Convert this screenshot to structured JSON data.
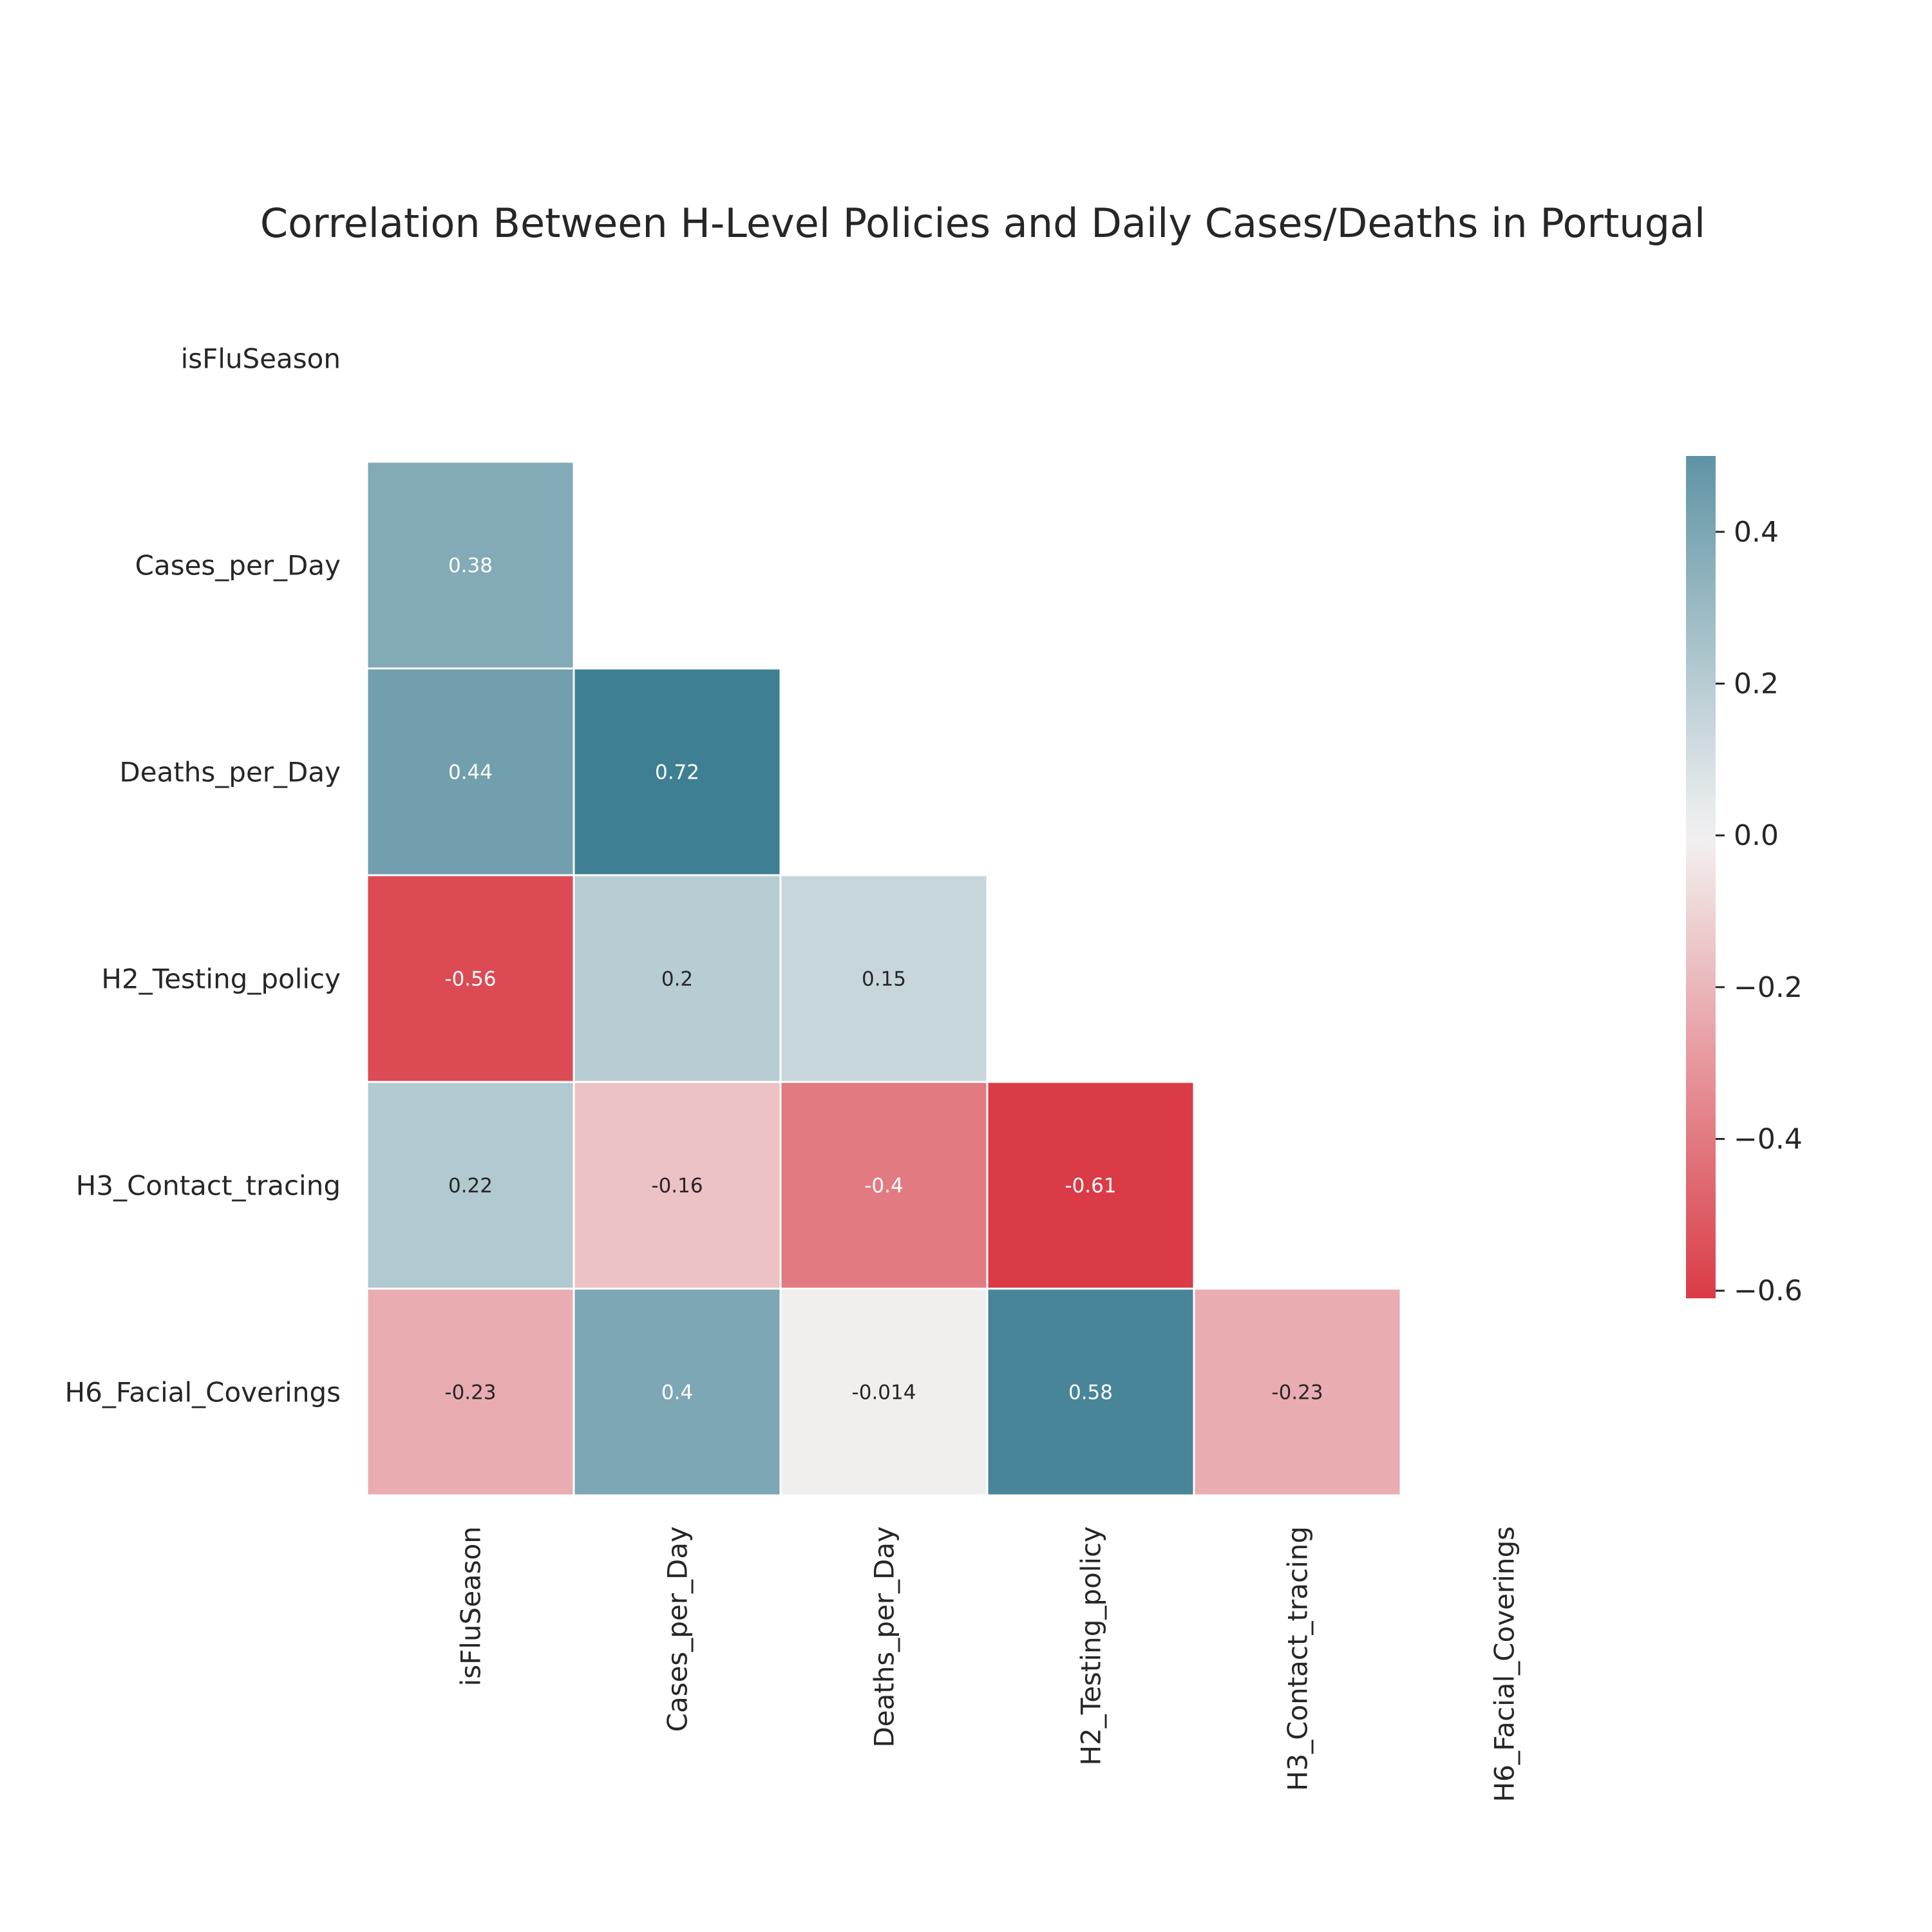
{
  "chart_data": {
    "type": "heatmap",
    "title": "Correlation Between H-Level Policies and Daily Cases/Deaths in Portugal",
    "row_labels": [
      "isFluSeason",
      "Cases_per_Day",
      "Deaths_per_Day",
      "H2_Testing_policy",
      "H3_Contact_tracing",
      "H6_Facial_Coverings"
    ],
    "col_labels": [
      "isFluSeason",
      "Cases_per_Day",
      "Deaths_per_Day",
      "H2_Testing_policy",
      "H3_Contact_tracing",
      "H6_Facial_Coverings"
    ],
    "mask": "upper-triangle-including-diagonal",
    "values": [
      [
        null,
        null,
        null,
        null,
        null,
        null
      ],
      [
        0.38,
        null,
        null,
        null,
        null,
        null
      ],
      [
        0.44,
        0.72,
        null,
        null,
        null,
        null
      ],
      [
        -0.56,
        0.2,
        0.15,
        null,
        null,
        null
      ],
      [
        0.22,
        -0.16,
        -0.4,
        -0.61,
        null,
        null
      ],
      [
        -0.23,
        0.4,
        -0.014,
        0.58,
        -0.23,
        null
      ]
    ],
    "annotations": [
      [
        "",
        "",
        "",
        "",
        "",
        ""
      ],
      [
        "0.38",
        "",
        "",
        "",
        "",
        ""
      ],
      [
        "0.44",
        "0.72",
        "",
        "",
        "",
        ""
      ],
      [
        "-0.56",
        "0.2",
        "0.15",
        "",
        "",
        ""
      ],
      [
        "0.22",
        "-0.16",
        "-0.4",
        "-0.61",
        "",
        ""
      ],
      [
        "-0.23",
        "0.4",
        "-0.014",
        "0.58",
        "-0.23",
        ""
      ]
    ],
    "colorbar": {
      "vmin": -0.61,
      "vmax": 0.5,
      "ticks": [
        0.4,
        0.2,
        0.0,
        -0.2,
        -0.4,
        -0.6
      ],
      "tick_labels": [
        "0.4",
        "0.2",
        "0.0",
        "−0.2",
        "−0.4",
        "−0.6"
      ],
      "colors": {
        "negative": "#da3b46",
        "neutral": "#f2f2f2",
        "positive": "#3f7f93"
      },
      "placement": "right"
    }
  }
}
